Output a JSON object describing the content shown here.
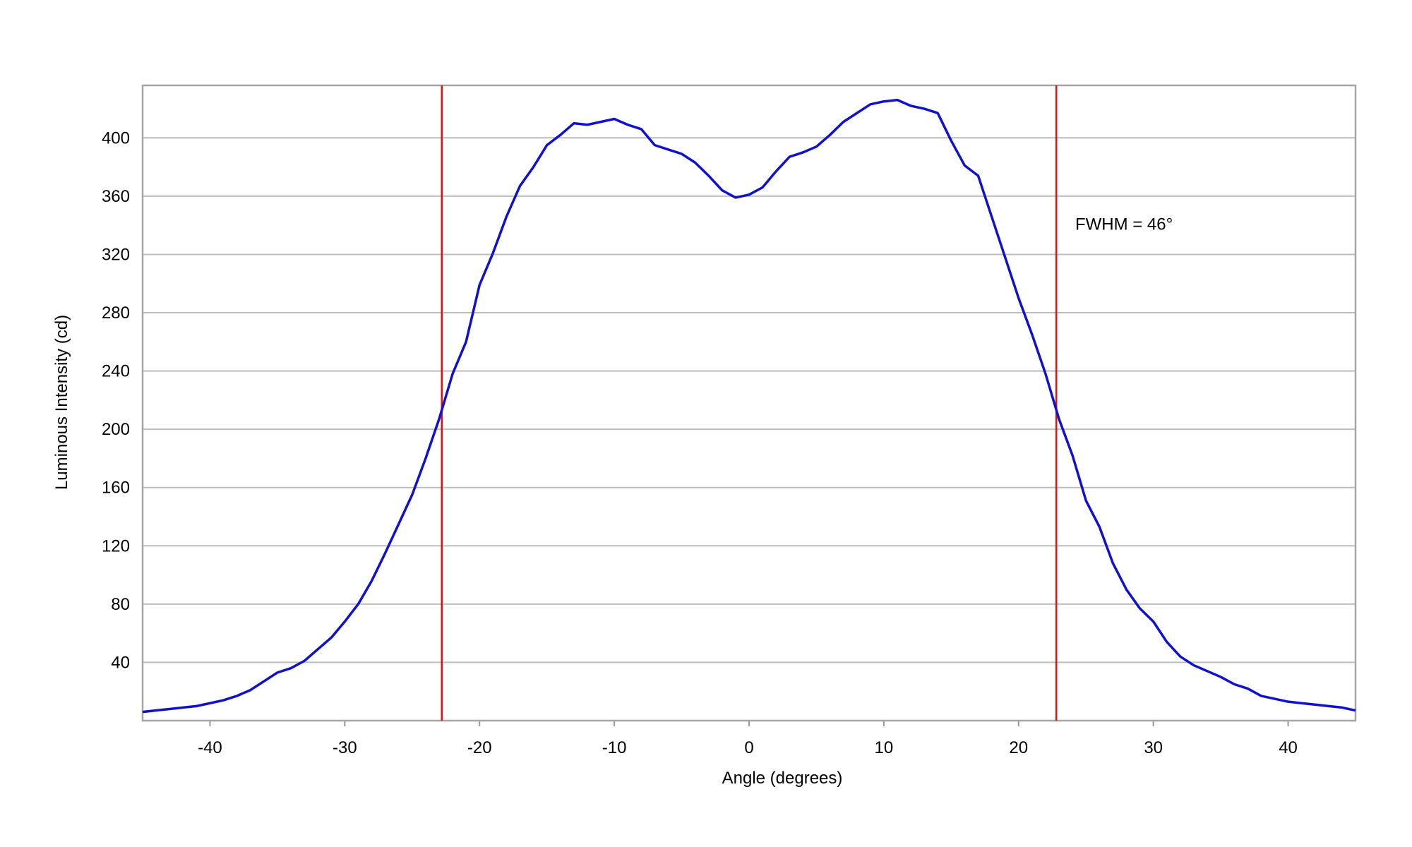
{
  "chart_data": {
    "type": "line",
    "xlabel": "Angle (degrees)",
    "ylabel": "Luminous Intensity (cd)",
    "x": [
      -45,
      -44,
      -43,
      -42,
      -41,
      -40,
      -39,
      -38,
      -37,
      -36,
      -35,
      -34,
      -33,
      -32,
      -31,
      -30,
      -29,
      -28,
      -27,
      -26,
      -25,
      -24,
      -23,
      -22,
      -21,
      -20,
      -19,
      -18,
      -17,
      -16,
      -15,
      -14,
      -13,
      -12,
      -11,
      -10,
      -9,
      -8,
      -7,
      -6,
      -5,
      -4,
      -3,
      -2,
      -1,
      0,
      1,
      2,
      3,
      4,
      5,
      6,
      7,
      8,
      9,
      10,
      11,
      12,
      13,
      14,
      15,
      16,
      17,
      18,
      19,
      20,
      21,
      22,
      23,
      24,
      25,
      26,
      27,
      28,
      29,
      30,
      31,
      32,
      33,
      34,
      35,
      36,
      37,
      38,
      39,
      40,
      41,
      42,
      43,
      44,
      45
    ],
    "series": [
      {
        "name": "Luminous Intensity",
        "color": "#1010d0",
        "values": [
          6,
          7,
          8,
          9,
          10,
          12,
          14,
          17,
          21,
          27,
          33,
          36,
          41,
          49,
          57,
          68,
          80,
          96,
          115,
          135,
          155,
          180,
          207,
          238,
          260,
          299,
          321,
          346,
          367,
          380,
          395,
          402,
          410,
          409,
          411,
          413,
          409,
          406,
          395,
          392,
          389,
          383,
          374,
          364,
          359,
          361,
          366,
          377,
          387,
          390,
          394,
          402,
          411,
          417,
          423,
          425,
          426,
          422,
          420,
          417,
          398,
          381,
          374,
          346,
          318,
          290,
          265,
          238,
          207,
          182,
          151,
          133,
          108,
          90,
          77,
          68,
          54,
          44,
          38,
          34,
          30,
          25,
          22,
          17,
          15,
          13,
          12,
          11,
          10,
          9,
          7
        ]
      }
    ],
    "vlines": [
      {
        "x": -22.8,
        "color": "#e01010"
      },
      {
        "x": 22.8,
        "color": "#e01010"
      }
    ],
    "annotations": [
      {
        "text": "FWHM = 46°",
        "x": 24.2,
        "y": 337
      }
    ],
    "xlim": [
      -45,
      45
    ],
    "ylim": [
      0,
      436
    ],
    "xticks": [
      -40,
      -30,
      -20,
      -10,
      0,
      10,
      20,
      30,
      40
    ],
    "yticks": [
      40,
      80,
      120,
      160,
      200,
      240,
      280,
      320,
      360,
      400
    ],
    "grid": true
  }
}
